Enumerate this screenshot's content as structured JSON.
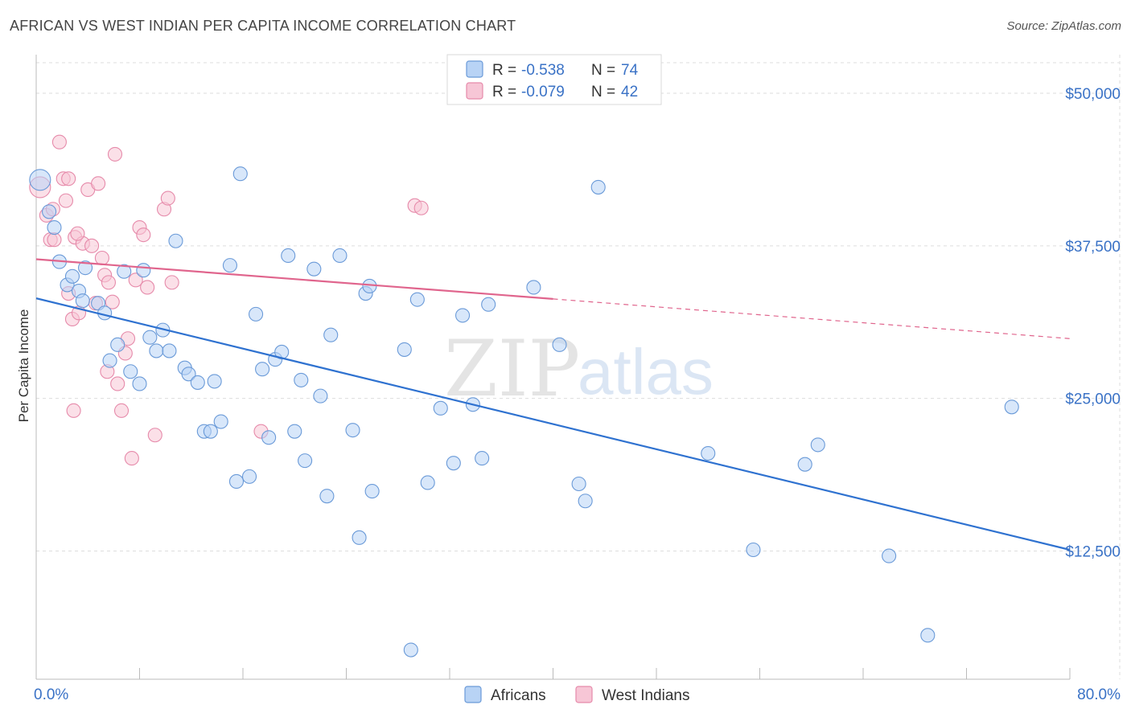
{
  "title": "AFRICAN VS WEST INDIAN PER CAPITA INCOME CORRELATION CHART",
  "source": "Source: ZipAtlas.com",
  "watermark": {
    "zip": "ZIP",
    "atlas": "atlas"
  },
  "colors": {
    "africans_fill": "#b8d3f5",
    "africans_stroke": "#6a9ad8",
    "africans_line": "#2f72d0",
    "westindians_fill": "#f7c6d6",
    "westindians_stroke": "#e68aaa",
    "westindians_line": "#e0658d",
    "tick_label": "#3a72c6",
    "grid": "#dddddd"
  },
  "legend": {
    "africans": {
      "r_label": "R =",
      "r_value": "-0.538",
      "n_label": "N =",
      "n_value": "74"
    },
    "westindians": {
      "r_label": "R =",
      "r_value": "-0.079",
      "n_label": "N =",
      "n_value": "42"
    }
  },
  "chart_data": {
    "type": "scatter",
    "title": "AFRICAN VS WEST INDIAN PER CAPITA INCOME CORRELATION CHART",
    "xlabel": "",
    "ylabel": "Per Capita Income",
    "xlim": [
      0,
      80
    ],
    "ylim": [
      2000,
      52500
    ],
    "x_tick_labels": [
      "0.0%",
      "80.0%"
    ],
    "y_ticks": [
      12500,
      25000,
      37500,
      50000
    ],
    "y_tick_labels": [
      "$12,500",
      "$25,000",
      "$37,500",
      "$50,000"
    ],
    "grid": true,
    "legend_position": "bottom-center",
    "series": [
      {
        "name": "Africans",
        "trend": {
          "x0": 0,
          "y0": 33200,
          "x1": 80,
          "y1": 12600,
          "dashed_from": null
        },
        "points": [
          [
            0.3,
            42900
          ],
          [
            1.0,
            40300
          ],
          [
            1.4,
            39000
          ],
          [
            1.8,
            36200
          ],
          [
            2.4,
            34300
          ],
          [
            2.8,
            35000
          ],
          [
            3.3,
            33800
          ],
          [
            3.6,
            33000
          ],
          [
            3.8,
            35700
          ],
          [
            4.8,
            32800
          ],
          [
            5.3,
            32000
          ],
          [
            5.7,
            28100
          ],
          [
            6.3,
            29400
          ],
          [
            6.8,
            35400
          ],
          [
            7.3,
            27200
          ],
          [
            8.0,
            26200
          ],
          [
            8.3,
            35500
          ],
          [
            8.8,
            30000
          ],
          [
            9.3,
            28900
          ],
          [
            9.8,
            30600
          ],
          [
            10.3,
            28900
          ],
          [
            10.8,
            37900
          ],
          [
            11.5,
            27500
          ],
          [
            11.8,
            27000
          ],
          [
            12.5,
            26300
          ],
          [
            13.0,
            22300
          ],
          [
            13.5,
            22300
          ],
          [
            13.8,
            26400
          ],
          [
            14.3,
            23100
          ],
          [
            15.0,
            35900
          ],
          [
            15.5,
            18200
          ],
          [
            15.8,
            43400
          ],
          [
            16.5,
            18600
          ],
          [
            17.0,
            31900
          ],
          [
            17.5,
            27400
          ],
          [
            18.0,
            21800
          ],
          [
            18.5,
            28200
          ],
          [
            19.0,
            28800
          ],
          [
            19.5,
            36700
          ],
          [
            20.0,
            22300
          ],
          [
            20.5,
            26500
          ],
          [
            20.8,
            19900
          ],
          [
            21.5,
            35600
          ],
          [
            22.0,
            25200
          ],
          [
            22.5,
            17000
          ],
          [
            22.8,
            30200
          ],
          [
            23.5,
            36700
          ],
          [
            24.5,
            22400
          ],
          [
            25.0,
            13600
          ],
          [
            25.5,
            33600
          ],
          [
            25.8,
            34200
          ],
          [
            26.0,
            17400
          ],
          [
            28.5,
            29000
          ],
          [
            29.0,
            4400
          ],
          [
            29.5,
            33100
          ],
          [
            30.3,
            18100
          ],
          [
            31.3,
            24200
          ],
          [
            32.3,
            19700
          ],
          [
            33.0,
            31800
          ],
          [
            33.8,
            24500
          ],
          [
            34.5,
            20100
          ],
          [
            35.0,
            32700
          ],
          [
            38.5,
            34100
          ],
          [
            40.5,
            29400
          ],
          [
            42.0,
            18000
          ],
          [
            42.5,
            16600
          ],
          [
            43.5,
            42300
          ],
          [
            52.0,
            20500
          ],
          [
            55.5,
            12600
          ],
          [
            59.5,
            19600
          ],
          [
            60.5,
            21200
          ],
          [
            66.0,
            12100
          ],
          [
            69.0,
            5600
          ],
          [
            75.5,
            24300
          ]
        ]
      },
      {
        "name": "West Indians",
        "trend": {
          "x0": 0,
          "y0": 36400,
          "x1": 80,
          "y1": 29900,
          "dashed_from": 40
        },
        "points": [
          [
            0.3,
            42300
          ],
          [
            0.8,
            40000
          ],
          [
            1.1,
            38000
          ],
          [
            1.3,
            40500
          ],
          [
            1.8,
            46000
          ],
          [
            2.1,
            43000
          ],
          [
            2.3,
            41200
          ],
          [
            2.5,
            43000
          ],
          [
            2.8,
            31500
          ],
          [
            3.0,
            38200
          ],
          [
            3.3,
            32000
          ],
          [
            3.6,
            37700
          ],
          [
            4.0,
            42100
          ],
          [
            4.3,
            37500
          ],
          [
            4.6,
            32800
          ],
          [
            4.8,
            42600
          ],
          [
            5.1,
            36500
          ],
          [
            5.3,
            35100
          ],
          [
            5.6,
            34500
          ],
          [
            5.9,
            32900
          ],
          [
            6.1,
            45000
          ],
          [
            6.3,
            26200
          ],
          [
            6.6,
            24000
          ],
          [
            6.9,
            28700
          ],
          [
            7.1,
            29900
          ],
          [
            7.4,
            20100
          ],
          [
            7.7,
            34700
          ],
          [
            8.0,
            39000
          ],
          [
            8.3,
            38400
          ],
          [
            8.6,
            34100
          ],
          [
            9.2,
            22000
          ],
          [
            9.9,
            40500
          ],
          [
            10.2,
            41400
          ],
          [
            10.5,
            34500
          ],
          [
            17.4,
            22300
          ],
          [
            29.3,
            40800
          ],
          [
            29.8,
            40600
          ],
          [
            1.4,
            38000
          ],
          [
            2.5,
            33600
          ],
          [
            2.9,
            24000
          ],
          [
            5.5,
            27200
          ],
          [
            3.2,
            38500
          ]
        ]
      }
    ]
  },
  "bottom_legend": {
    "africans": "Africans",
    "westindians": "West Indians"
  }
}
